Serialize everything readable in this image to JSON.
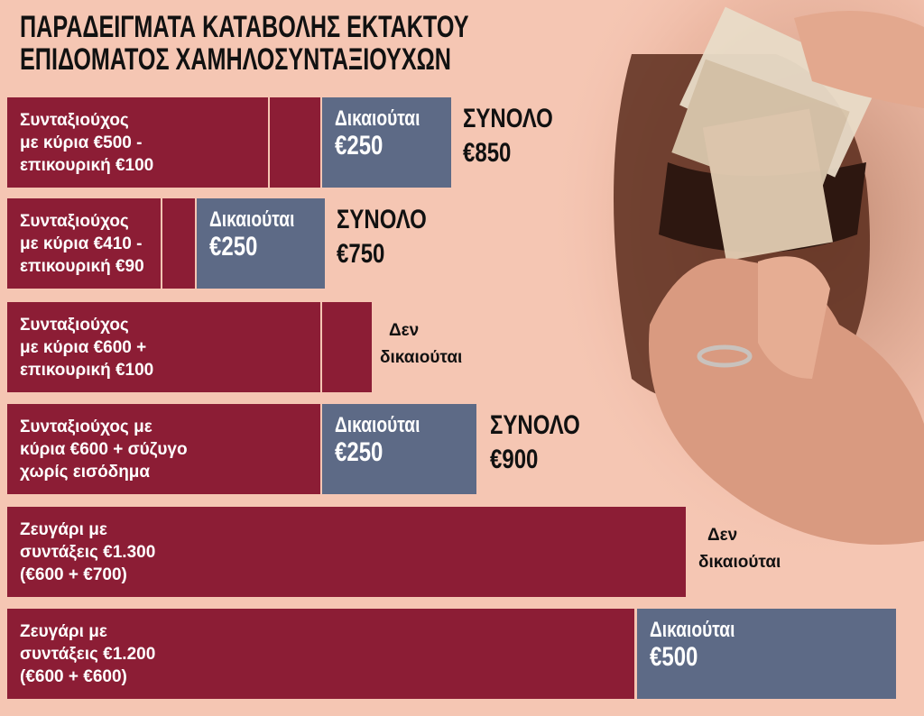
{
  "title": {
    "lines": [
      "ΠΑΡΑΔΕΙΓΜΑΤΑ ΚΑΤΑΒΟΛΗΣ ΕΚΤΑΚΤΟΥ",
      "ΕΠΙΔΟΜΑΤΟΣ ΧΑΜΗΛΟΣΥΝΤΑΞΙΟΥΧΩΝ"
    ]
  },
  "rows": [
    {
      "description": [
        "Συνταξιούχος",
        "με κύρια €500 -",
        "επικουρική €100"
      ],
      "benefit": [
        "Δικαιούται",
        "€250"
      ],
      "total": [
        "ΣΥΝΟΛΟ",
        "€850"
      ]
    },
    {
      "description": [
        "Συνταξιούχος",
        "με κύρια €410 -",
        "επικουρική €90"
      ],
      "benefit": [
        "Δικαιούται",
        "€250"
      ],
      "total": [
        "ΣΥΝΟΛΟ",
        "€750"
      ]
    },
    {
      "description": [
        "Συνταξιούχος",
        "με κύρια €600 +",
        "επικουρική €100"
      ],
      "status": [
        "Δεν",
        "δικαιούται"
      ]
    },
    {
      "description": [
        "Συνταξιούχος με",
        "κύρια €600 + σύζυγο",
        "χωρίς εισόδημα"
      ],
      "benefit": [
        "Δικαιούται",
        "€250"
      ],
      "total": [
        "ΣΥΝΟΛΟ",
        "€900"
      ]
    },
    {
      "description": [
        "Ζευγάρι με",
        "συντάξεις €1.300",
        "(€600 + €700)"
      ],
      "status": [
        "Δεν",
        "δικαιούται"
      ]
    },
    {
      "description": [
        "Ζευγάρι με",
        "συντάξεις €1.200",
        "(€600 + €600)"
      ],
      "benefit": [
        "Δικαιούται",
        "€500"
      ]
    }
  ]
}
